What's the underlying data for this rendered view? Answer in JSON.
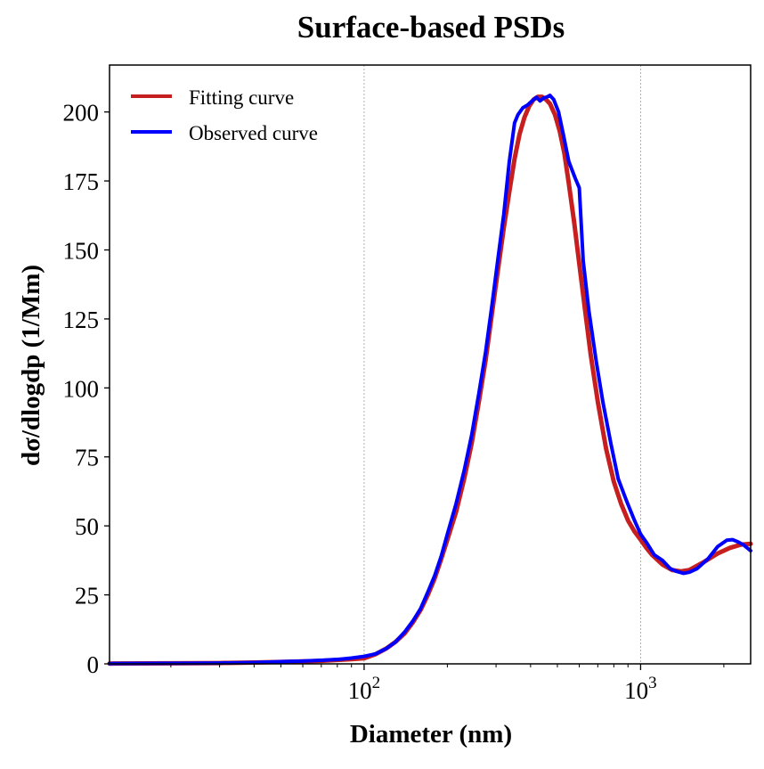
{
  "chart_data": {
    "type": "line",
    "title": "Surface-based PSDs",
    "xlabel": "Diameter (nm)",
    "ylabel": "dσ/dlogdp (1/Mm)",
    "x_scale": "log",
    "xlim": [
      12,
      2500
    ],
    "ylim": [
      0,
      217
    ],
    "grid": "vertical at decades",
    "legend_position": "top-left",
    "x_ticks": [
      {
        "value": 100,
        "base": "10",
        "exp": "2"
      },
      {
        "value": 1000,
        "base": "10",
        "exp": "3"
      }
    ],
    "y_ticks": [
      {
        "value": 0,
        "label": "0"
      },
      {
        "value": 25,
        "label": "25"
      },
      {
        "value": 50,
        "label": "50"
      },
      {
        "value": 75,
        "label": "75"
      },
      {
        "value": 100,
        "label": "100"
      },
      {
        "value": 125,
        "label": "125"
      },
      {
        "value": 150,
        "label": "150"
      },
      {
        "value": 175,
        "label": "175"
      },
      {
        "value": 200,
        "label": "200"
      }
    ],
    "series": [
      {
        "name": "Fitting curve",
        "color": "#c71f1f",
        "points": [
          [
            12,
            0.1
          ],
          [
            20,
            0.2
          ],
          [
            30,
            0.3
          ],
          [
            40,
            0.5
          ],
          [
            50,
            0.7
          ],
          [
            60,
            0.9
          ],
          [
            70,
            1.1
          ],
          [
            80,
            1.4
          ],
          [
            90,
            1.7
          ],
          [
            100,
            2.0
          ],
          [
            110,
            3.5
          ],
          [
            120,
            5.5
          ],
          [
            130,
            8
          ],
          [
            140,
            11
          ],
          [
            150,
            15
          ],
          [
            160,
            19.5
          ],
          [
            170,
            25
          ],
          [
            180,
            31
          ],
          [
            190,
            38
          ],
          [
            200,
            45
          ],
          [
            215,
            55
          ],
          [
            230,
            67
          ],
          [
            245,
            80
          ],
          [
            260,
            95
          ],
          [
            275,
            110
          ],
          [
            290,
            127
          ],
          [
            305,
            143
          ],
          [
            320,
            158
          ],
          [
            335,
            171
          ],
          [
            350,
            183
          ],
          [
            365,
            192
          ],
          [
            380,
            198
          ],
          [
            395,
            202
          ],
          [
            410,
            204.5
          ],
          [
            425,
            205.5
          ],
          [
            440,
            205.5
          ],
          [
            455,
            204.5
          ],
          [
            470,
            203
          ],
          [
            490,
            199
          ],
          [
            510,
            193
          ],
          [
            530,
            185
          ],
          [
            550,
            174
          ],
          [
            575,
            160
          ],
          [
            600,
            145
          ],
          [
            630,
            128
          ],
          [
            660,
            112
          ],
          [
            700,
            95
          ],
          [
            750,
            78
          ],
          [
            800,
            66
          ],
          [
            850,
            58
          ],
          [
            900,
            52
          ],
          [
            950,
            48
          ],
          [
            1000,
            45
          ],
          [
            1050,
            42
          ],
          [
            1100,
            39.5
          ],
          [
            1200,
            36
          ],
          [
            1300,
            34
          ],
          [
            1400,
            33.5
          ],
          [
            1500,
            34
          ],
          [
            1700,
            37
          ],
          [
            1900,
            40
          ],
          [
            2100,
            42
          ],
          [
            2300,
            43.2
          ],
          [
            2500,
            43.5
          ]
        ]
      },
      {
        "name": "Observed curve",
        "color": "#0000ff",
        "points": [
          [
            12,
            0.1
          ],
          [
            20,
            0.2
          ],
          [
            30,
            0.3
          ],
          [
            40,
            0.5
          ],
          [
            50,
            0.8
          ],
          [
            60,
            1.0
          ],
          [
            70,
            1.3
          ],
          [
            80,
            1.6
          ],
          [
            90,
            2.1
          ],
          [
            100,
            2.7
          ],
          [
            110,
            3.6
          ],
          [
            120,
            5.5
          ],
          [
            130,
            8
          ],
          [
            140,
            11.5
          ],
          [
            150,
            15.5
          ],
          [
            160,
            20
          ],
          [
            170,
            26
          ],
          [
            180,
            32
          ],
          [
            190,
            39
          ],
          [
            200,
            47
          ],
          [
            215,
            58
          ],
          [
            230,
            70
          ],
          [
            245,
            83
          ],
          [
            260,
            98
          ],
          [
            275,
            113
          ],
          [
            290,
            130
          ],
          [
            305,
            147
          ],
          [
            320,
            163
          ],
          [
            335,
            182
          ],
          [
            350,
            196
          ],
          [
            360,
            199
          ],
          [
            375,
            201.5
          ],
          [
            390,
            202.5
          ],
          [
            405,
            204
          ],
          [
            420,
            205.3
          ],
          [
            433,
            204
          ],
          [
            445,
            205
          ],
          [
            460,
            205.5
          ],
          [
            470,
            206
          ],
          [
            485,
            204.5
          ],
          [
            505,
            200
          ],
          [
            525,
            192
          ],
          [
            550,
            182
          ],
          [
            580,
            176
          ],
          [
            600,
            172.5
          ],
          [
            620,
            146
          ],
          [
            650,
            128
          ],
          [
            690,
            110
          ],
          [
            730,
            95
          ],
          [
            780,
            80
          ],
          [
            830,
            67
          ],
          [
            890,
            59
          ],
          [
            950,
            52
          ],
          [
            1000,
            47
          ],
          [
            1050,
            44
          ],
          [
            1120,
            39.5
          ],
          [
            1200,
            37.5
          ],
          [
            1280,
            34.5
          ],
          [
            1350,
            33.5
          ],
          [
            1430,
            32.8
          ],
          [
            1500,
            33.2
          ],
          [
            1600,
            34.5
          ],
          [
            1750,
            38
          ],
          [
            1900,
            42.5
          ],
          [
            2050,
            44.8
          ],
          [
            2150,
            45
          ],
          [
            2250,
            44.2
          ],
          [
            2350,
            43.2
          ],
          [
            2500,
            41
          ]
        ]
      }
    ]
  }
}
